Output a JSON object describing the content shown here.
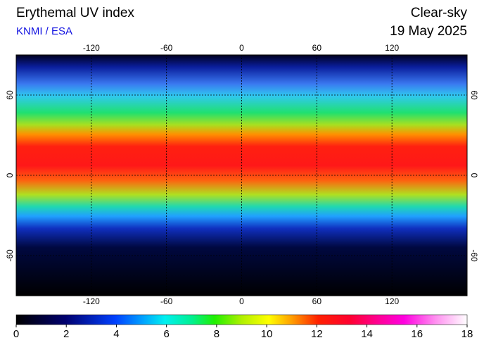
{
  "header": {
    "title": "Erythemal UV index",
    "source": "KNMI / ESA",
    "mode": "Clear-sky",
    "date": "19 May 2025"
  },
  "map": {
    "xlim": [
      -180,
      180
    ],
    "ylim": [
      -90,
      90
    ],
    "xticks": [
      -120,
      -60,
      0,
      60,
      120
    ],
    "yticks": [
      60,
      0,
      -60
    ]
  },
  "colorbar": {
    "lim": [
      0,
      18
    ],
    "ticks": [
      0,
      2,
      4,
      6,
      8,
      10,
      12,
      14,
      16,
      18
    ]
  }
}
